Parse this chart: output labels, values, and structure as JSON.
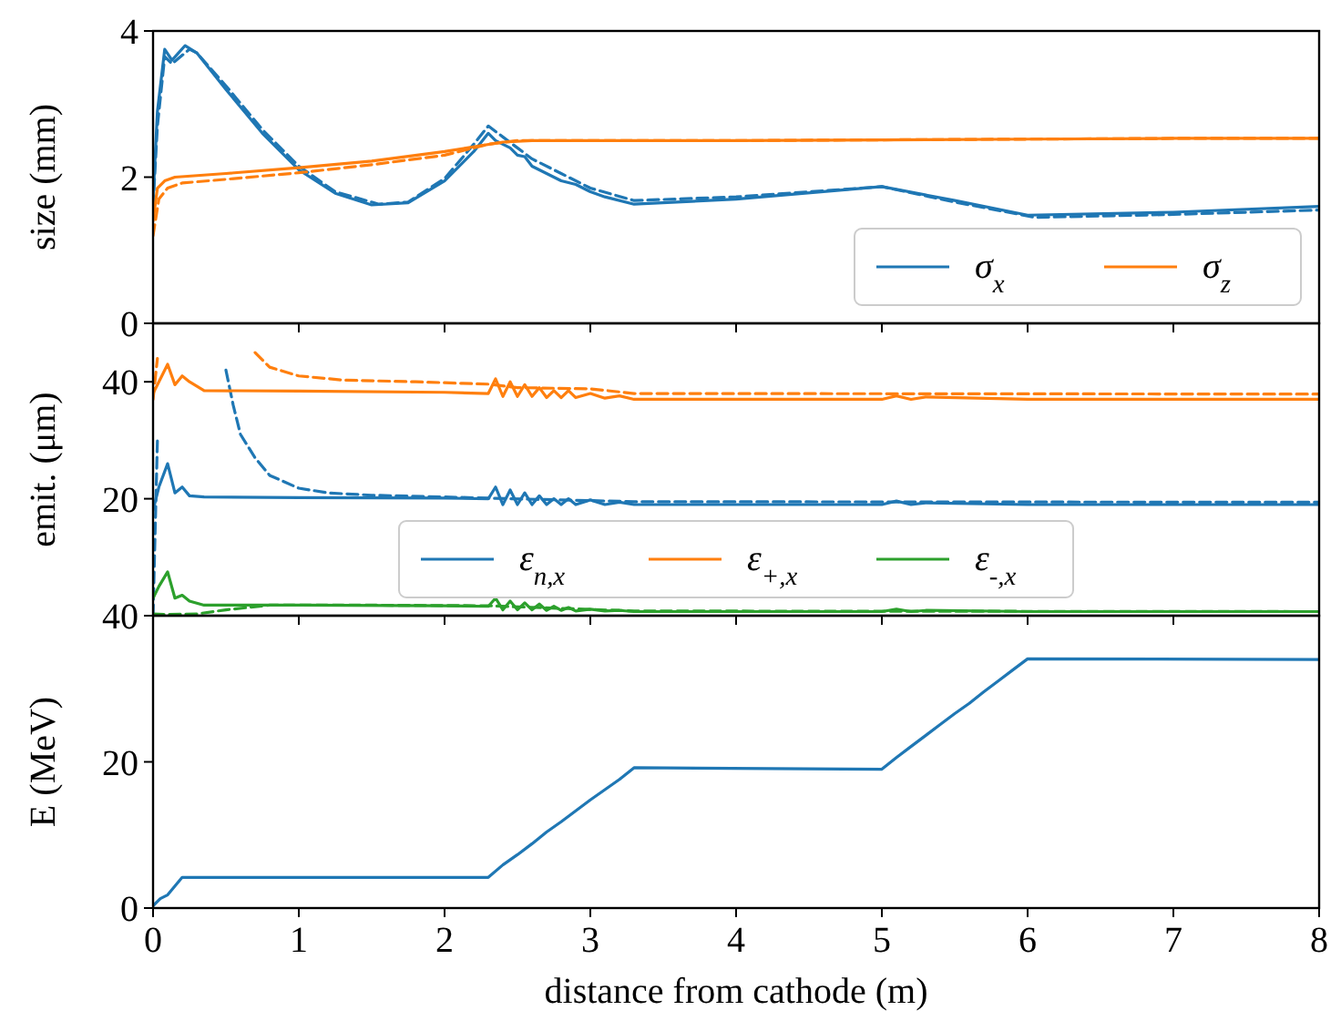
{
  "chart_data": [
    {
      "type": "line",
      "ylabel": "size (mm)",
      "xlim": [
        0,
        8
      ],
      "xticks": [
        0,
        1,
        2,
        3,
        4,
        5,
        6,
        7,
        8
      ],
      "ylim": [
        0,
        4
      ],
      "yticks": [
        0,
        2,
        4
      ],
      "tick_labels": "y",
      "legend": "bottom right",
      "series": [
        {
          "name": "σ$_{x}$",
          "color": "#1f77b4",
          "line_style": "solid",
          "x": [
            0,
            0.03,
            0.08,
            0.13,
            0.22,
            0.3,
            0.5,
            0.75,
            1.0,
            1.25,
            1.5,
            1.75,
            2.0,
            2.2,
            2.3,
            2.35,
            2.4,
            2.45,
            2.5,
            2.55,
            2.6,
            2.7,
            2.8,
            2.9,
            3.0,
            3.1,
            3.3,
            4.0,
            5.0,
            5.5,
            6.0,
            7.0,
            8.0
          ],
          "values": [
            1.7,
            2.9,
            3.75,
            3.6,
            3.8,
            3.7,
            3.2,
            2.6,
            2.1,
            1.78,
            1.62,
            1.65,
            1.95,
            2.35,
            2.6,
            2.5,
            2.45,
            2.4,
            2.3,
            2.28,
            2.15,
            2.05,
            1.95,
            1.9,
            1.8,
            1.73,
            1.63,
            1.7,
            1.87,
            1.68,
            1.48,
            1.52,
            1.6
          ]
        },
        {
          "color": "#1f77b4",
          "line_style": "dashed",
          "x": [
            0,
            0.03,
            0.08,
            0.13,
            0.25,
            0.3,
            0.5,
            0.75,
            1.0,
            1.25,
            1.55,
            1.75,
            2.0,
            2.2,
            2.3,
            2.4,
            2.5,
            2.6,
            2.8,
            3.0,
            3.3,
            4.0,
            5.0,
            5.5,
            6.05,
            7.0,
            8.0
          ],
          "values": [
            1.6,
            2.7,
            3.65,
            3.55,
            3.75,
            3.7,
            3.25,
            2.65,
            2.15,
            1.8,
            1.63,
            1.66,
            1.98,
            2.45,
            2.7,
            2.55,
            2.4,
            2.25,
            2.05,
            1.85,
            1.68,
            1.73,
            1.87,
            1.66,
            1.45,
            1.49,
            1.55
          ]
        },
        {
          "name": "σ$_{z}$",
          "color": "#ff7f0e",
          "line_style": "solid",
          "x": [
            0,
            0.03,
            0.08,
            0.15,
            0.5,
            1,
            1.5,
            2,
            2.4,
            2.6,
            3,
            4,
            5,
            6,
            7,
            8
          ],
          "values": [
            1.4,
            1.85,
            1.95,
            2.0,
            2.05,
            2.13,
            2.22,
            2.35,
            2.48,
            2.5,
            2.5,
            2.5,
            2.51,
            2.52,
            2.53,
            2.53
          ]
        },
        {
          "color": "#ff7f0e",
          "line_style": "dashed",
          "x": [
            0,
            0.04,
            0.1,
            0.2,
            0.5,
            1,
            1.5,
            2,
            2.3,
            2.5,
            3,
            4,
            5,
            6,
            7,
            8
          ],
          "values": [
            1.2,
            1.7,
            1.85,
            1.92,
            1.97,
            2.06,
            2.17,
            2.3,
            2.45,
            2.5,
            2.5,
            2.5,
            2.51,
            2.52,
            2.53,
            2.53
          ]
        }
      ]
    },
    {
      "type": "line",
      "ylabel": "emit. (μm)",
      "xlim": [
        0,
        8
      ],
      "xticks": [
        0,
        1,
        2,
        3,
        4,
        5,
        6,
        7,
        8
      ],
      "ylim": [
        0,
        50
      ],
      "yticks": [
        20,
        40
      ],
      "tick_labels": "y",
      "legend": "bottom",
      "series": [
        {
          "name": "ε$_{n,x}$",
          "color": "#1f77b4",
          "line_style": "solid",
          "x": [
            0,
            0.04,
            0.1,
            0.15,
            0.2,
            0.25,
            0.35,
            1,
            2.0,
            2.3,
            2.35,
            2.4,
            2.45,
            2.5,
            2.55,
            2.6,
            2.65,
            2.7,
            2.75,
            2.8,
            2.85,
            2.9,
            3.0,
            3.1,
            3.2,
            3.3,
            5.0,
            5.1,
            5.2,
            5.3,
            6,
            8
          ],
          "values": [
            18,
            22,
            26,
            21,
            22,
            20.5,
            20.3,
            20.2,
            20.1,
            20,
            22,
            19,
            21.5,
            19,
            21,
            19,
            20.5,
            19,
            20,
            19,
            20,
            19,
            19.8,
            19,
            19.4,
            19,
            19,
            19.6,
            19,
            19.3,
            19,
            19
          ]
        },
        {
          "color": "#1f77b4",
          "line_style": "dashed",
          "x": [
            0,
            0.03,
            0.05,
            0.2,
            0.45,
            0.5,
            0.55,
            0.6,
            0.7,
            0.8,
            1.0,
            1.2,
            1.5,
            2.0,
            2.3,
            3.3,
            8
          ],
          "values": [
            0,
            30,
            null,
            null,
            null,
            42,
            36,
            31,
            27,
            24,
            21.8,
            21,
            20.6,
            20.3,
            20.1,
            19.5,
            19.4
          ]
        },
        {
          "name": "ε$_{+,x}$",
          "color": "#ff7f0e",
          "line_style": "solid",
          "x": [
            0,
            0.04,
            0.1,
            0.15,
            0.2,
            0.25,
            0.35,
            1,
            2.0,
            2.3,
            2.35,
            2.4,
            2.45,
            2.5,
            2.55,
            2.6,
            2.65,
            2.7,
            2.75,
            2.8,
            2.85,
            2.9,
            3.0,
            3.1,
            3.2,
            3.3,
            5.0,
            5.1,
            5.2,
            5.3,
            6,
            8
          ],
          "values": [
            38,
            40,
            43,
            39.5,
            41,
            40,
            38.5,
            38.4,
            38.2,
            38,
            40.5,
            37.5,
            40,
            37.5,
            39.5,
            37.5,
            39,
            37.3,
            38.5,
            37.3,
            38.5,
            37.3,
            38,
            37.2,
            37.6,
            37,
            37,
            37.6,
            37,
            37.4,
            37,
            37
          ]
        },
        {
          "color": "#ff7f0e",
          "line_style": "dashed",
          "x": [
            0,
            0.03,
            0.06,
            0.2,
            0.6,
            0.7,
            0.8,
            1.0,
            1.3,
            1.8,
            2.3,
            2.5,
            3.0,
            3.3,
            8
          ],
          "values": [
            37,
            44,
            null,
            null,
            null,
            45,
            42.5,
            41,
            40.3,
            40,
            39.6,
            39,
            38.8,
            38,
            37.9
          ]
        },
        {
          "name": "ε$_{-,x}$",
          "color": "#2ca02c",
          "line_style": "solid",
          "x": [
            0,
            0.04,
            0.1,
            0.15,
            0.2,
            0.25,
            0.35,
            1,
            2.0,
            2.3,
            2.35,
            2.4,
            2.45,
            2.5,
            2.55,
            2.6,
            2.65,
            2.7,
            2.75,
            2.8,
            2.85,
            2.9,
            3.0,
            3.1,
            3.2,
            3.3,
            5.0,
            5.1,
            5.2,
            5.3,
            6,
            8
          ],
          "values": [
            3,
            5,
            7.5,
            3,
            3.5,
            2.5,
            1.8,
            1.8,
            1.7,
            1.6,
            3,
            1,
            2.5,
            1,
            2.2,
            1,
            2,
            0.9,
            1.6,
            0.9,
            1.4,
            0.8,
            1.1,
            0.8,
            0.9,
            0.7,
            0.7,
            1.1,
            0.7,
            0.9,
            0.7,
            0.7
          ]
        },
        {
          "color": "#2ca02c",
          "line_style": "dashed",
          "x": [
            0,
            0.1,
            0.3,
            0.5,
            0.8,
            1.5,
            2.3,
            3.3,
            8
          ],
          "values": [
            0.3,
            0.2,
            0.3,
            1,
            1.8,
            1.8,
            1.7,
            0.8,
            0.7
          ]
        }
      ]
    },
    {
      "type": "line",
      "xlabel": "distance from cathode (m)",
      "ylabel": "E (MeV)",
      "xlim": [
        0,
        8
      ],
      "xticks": [
        0,
        1,
        2,
        3,
        4,
        5,
        6,
        7,
        8
      ],
      "ylim": [
        0,
        40
      ],
      "yticks": [
        0,
        20,
        40
      ],
      "series": [
        {
          "color": "#1f77b4",
          "line_style": "solid",
          "x": [
            0,
            0.05,
            0.1,
            0.2,
            2.3,
            2.4,
            2.5,
            2.6,
            2.7,
            2.8,
            2.9,
            3.0,
            3.1,
            3.2,
            3.3,
            5.0,
            5.1,
            5.2,
            5.3,
            5.4,
            5.5,
            5.6,
            5.7,
            5.8,
            5.9,
            6.0,
            8
          ],
          "values": [
            0.3,
            1.3,
            1.8,
            4.2,
            4.2,
            5.9,
            7.3,
            8.8,
            10.4,
            11.8,
            13.3,
            14.8,
            16.2,
            17.6,
            19.2,
            19.0,
            20.6,
            22.1,
            23.6,
            25.1,
            26.6,
            28.0,
            29.6,
            31.1,
            32.6,
            34.1,
            34
          ]
        }
      ]
    }
  ]
}
